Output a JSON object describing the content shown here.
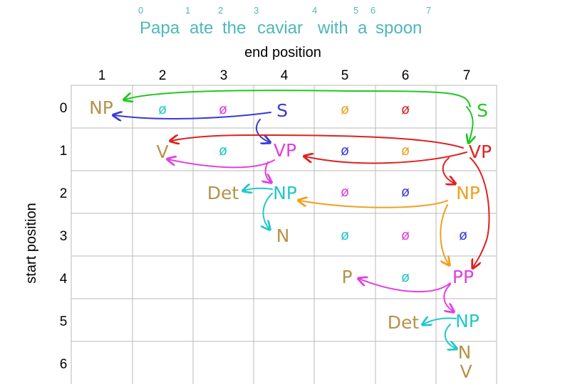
{
  "sentence": {
    "words": [
      "Papa",
      "ate",
      "the",
      "caviar",
      "with",
      "a",
      "spoon"
    ],
    "indices": [
      "0",
      "1",
      "2",
      "3",
      "4",
      "5",
      "6",
      "7"
    ]
  },
  "axes": {
    "column_title": "end position",
    "row_title": "start position",
    "columns": [
      "1",
      "2",
      "3",
      "4",
      "5",
      "6",
      "7"
    ],
    "rows": [
      "0",
      "1",
      "2",
      "3",
      "4",
      "5",
      "6"
    ]
  },
  "chart": {
    "labels": [
      {
        "id": "np-0-1",
        "text": "NP",
        "color": "#b5934a"
      },
      {
        "id": "s-0-4",
        "text": "S",
        "color": "#3a3ad6"
      },
      {
        "id": "s-0-7",
        "text": "S",
        "color": "#22c722"
      },
      {
        "id": "v-1-2",
        "text": "V",
        "color": "#b5934a"
      },
      {
        "id": "vp-1-4",
        "text": "VP",
        "color": "#e040e0"
      },
      {
        "id": "vp-1-7",
        "text": "VP",
        "color": "#e02020"
      },
      {
        "id": "det-2-3",
        "text": "Det",
        "color": "#b5934a"
      },
      {
        "id": "np-2-4",
        "text": "NP",
        "color": "#22c8c8"
      },
      {
        "id": "np-2-7",
        "text": "NP",
        "color": "#f0a020"
      },
      {
        "id": "n-3-4",
        "text": "N",
        "color": "#b5934a"
      },
      {
        "id": "p-4-5",
        "text": "P",
        "color": "#b5934a"
      },
      {
        "id": "pp-4-7",
        "text": "PP",
        "color": "#e040e0"
      },
      {
        "id": "det-5-6",
        "text": "Det",
        "color": "#b5934a"
      },
      {
        "id": "np-5-7",
        "text": "NP",
        "color": "#22c8c8"
      },
      {
        "id": "n-6-7",
        "text": "N",
        "color": "#b5934a"
      },
      {
        "id": "v-6-7",
        "text": "V",
        "color": "#b5934a"
      }
    ],
    "empty_marks": [
      {
        "id": "e-0-2",
        "text": "ø",
        "color": "#22c8c8"
      },
      {
        "id": "e-0-3",
        "text": "ø",
        "color": "#e040e0"
      },
      {
        "id": "e-0-5",
        "text": "ø",
        "color": "#f0a020"
      },
      {
        "id": "e-0-6",
        "text": "ø",
        "color": "#e02020"
      },
      {
        "id": "e-1-3",
        "text": "ø",
        "color": "#22c8c8"
      },
      {
        "id": "e-1-5",
        "text": "ø",
        "color": "#3a3ad6"
      },
      {
        "id": "e-1-6",
        "text": "ø",
        "color": "#f0a020"
      },
      {
        "id": "e-2-5",
        "text": "ø",
        "color": "#e040e0"
      },
      {
        "id": "e-2-6",
        "text": "ø",
        "color": "#3a3ad6"
      },
      {
        "id": "e-3-5",
        "text": "ø",
        "color": "#22c8c8"
      },
      {
        "id": "e-3-6",
        "text": "ø",
        "color": "#e040e0"
      },
      {
        "id": "e-3-7",
        "text": "ø",
        "color": "#3a3ad6"
      },
      {
        "id": "e-4-6",
        "text": "ø",
        "color": "#22c8c8"
      }
    ]
  },
  "colors": {
    "green": "#22c722",
    "blue": "#3a3ad6",
    "red": "#e02020",
    "magenta": "#e040e0",
    "orange": "#f0a020",
    "cyan": "#22c8c8",
    "gold": "#b5934a",
    "sentence": "#4db8b8"
  }
}
